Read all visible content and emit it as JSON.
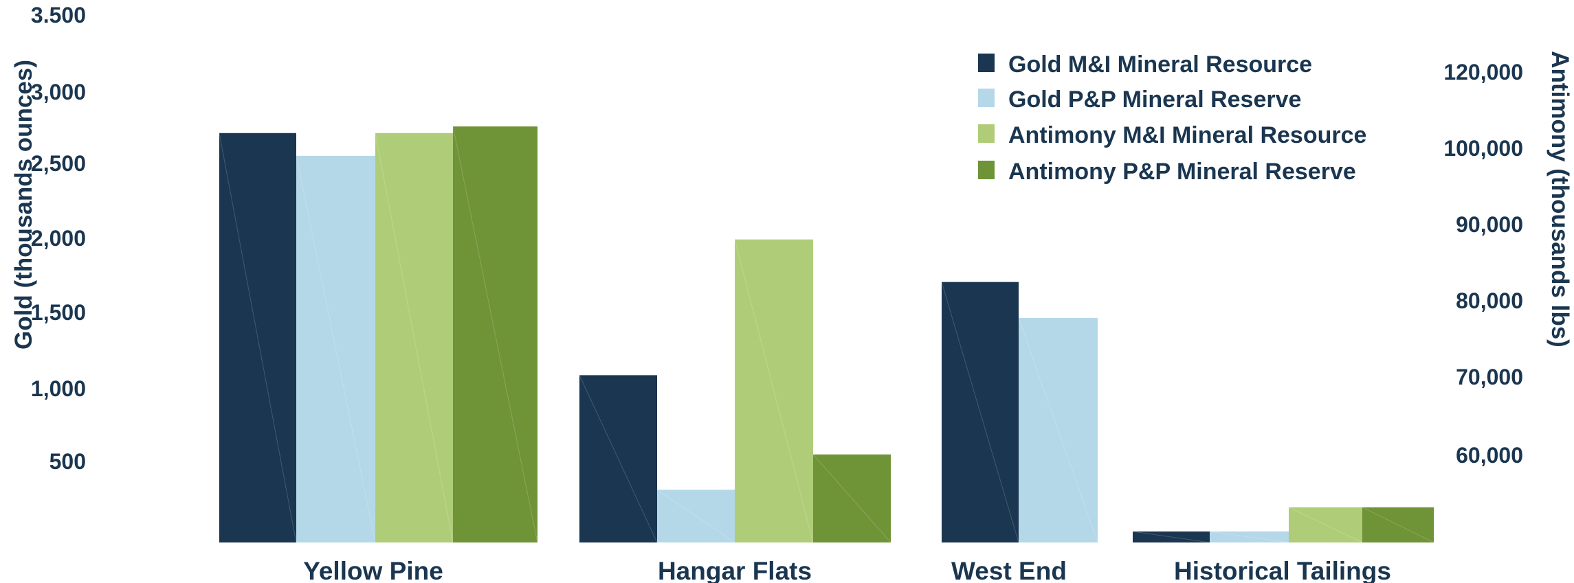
{
  "chart_data": {
    "type": "bar",
    "categories": [
      "Yellow Pine",
      "Hangar Flats",
      "West End",
      "Historical Tailings"
    ],
    "ylabel": "Gold (thousands ounces)",
    "y2label": "Antimony (thousands lbs)",
    "y_ticks": [
      "3.500",
      "3,000",
      "2,500",
      "2,000",
      "1,500",
      "1,000",
      "500"
    ],
    "y_tick_values": [
      3500,
      3000,
      2500,
      2000,
      1500,
      1000,
      500
    ],
    "y2_ticks": [
      "120,000",
      "100,000",
      "90,000",
      "80,000",
      "70,000",
      "60,000"
    ],
    "y2_tick_values": [
      120000,
      100000,
      90000,
      80000,
      70000,
      60000
    ],
    "grid": false,
    "legend_position": "top-right",
    "series": [
      {
        "name": "Gold M&I Mineral Resource",
        "axis": "left",
        "color": "#1a3650",
        "values": [
          2790,
          1140,
          1775,
          75
        ]
      },
      {
        "name": "Gold P&P Mineral Reserve",
        "axis": "right",
        "color": "#b4d8e8",
        "values": [
          2635,
          360,
          1530,
          75
        ]
      },
      {
        "name": "Antimony M&I Mineral Resource",
        "axis": "right",
        "color": "#afcd78",
        "values": [
          2790,
          2065,
          null,
          240
        ]
      },
      {
        "name": "Antimony P&P Mineral Reserve",
        "axis": "right",
        "color": "#6f9337",
        "values": [
          2835,
          600,
          null,
          240
        ]
      }
    ]
  }
}
